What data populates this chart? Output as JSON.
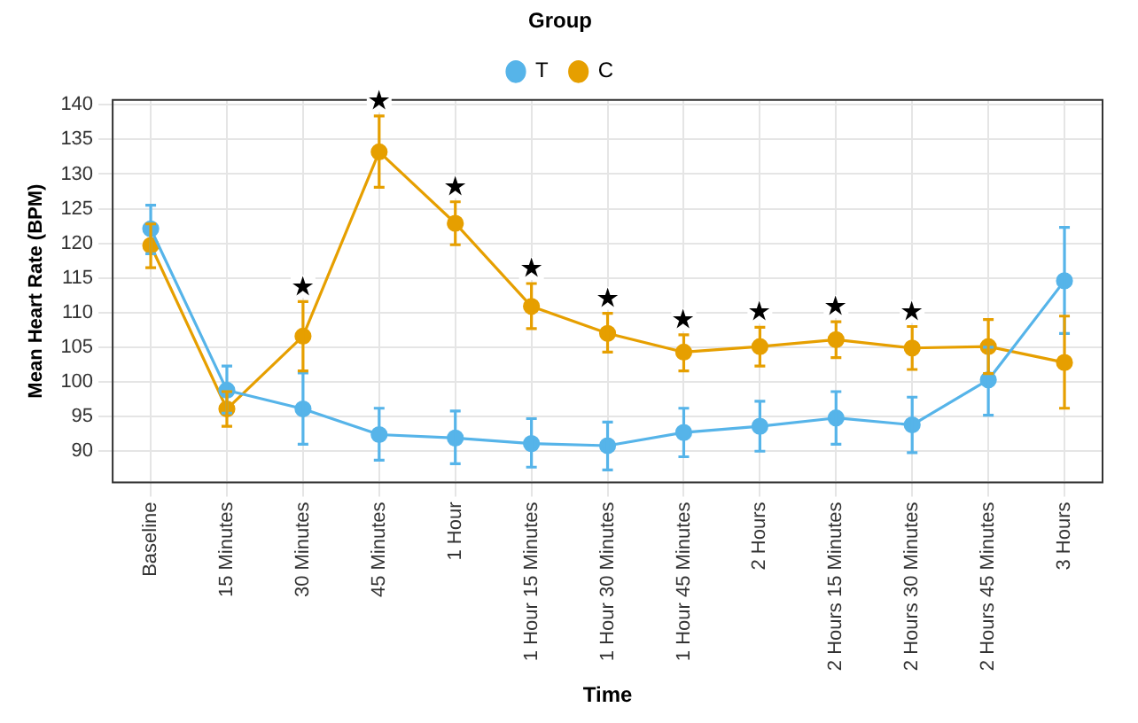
{
  "chart_data": {
    "type": "line",
    "xlabel": "Time",
    "ylabel": "Mean Heart Rate (BPM)",
    "legend_title": "Group",
    "legend": "top",
    "grid": true,
    "marker": "circle",
    "line_style": "solid",
    "categories": [
      "Baseline",
      "15 Minutes",
      "30 Minutes",
      "45 Minutes",
      "1 Hour",
      "1 Hour 15 Minutes",
      "1 Hour 30 Minutes",
      "1 Hour 45 Minutes",
      "2 Hours",
      "2 Hours 15 Minutes",
      "2 Hours 30 Minutes",
      "2 Hours 45 Minutes",
      "3 Hours"
    ],
    "ylim": [
      85.5,
      140.7
    ],
    "yticks": [
      90,
      95,
      100,
      105,
      110,
      115,
      120,
      125,
      130,
      135,
      140
    ],
    "series": [
      {
        "name": "T",
        "color": "#56b4e9",
        "values": [
          122.1,
          98.8,
          96.1,
          92.4,
          91.9,
          91.1,
          90.8,
          92.7,
          93.6,
          94.8,
          93.8,
          100.3,
          114.6
        ],
        "errors": [
          [
            118.5,
            125.5
          ],
          [
            95.5,
            102.3
          ],
          [
            91,
            101.3
          ],
          [
            88.7,
            96.2
          ],
          [
            88.2,
            95.8
          ],
          [
            87.7,
            94.7
          ],
          [
            87.3,
            94.2
          ],
          [
            89.2,
            96.2
          ],
          [
            90,
            97.2
          ],
          [
            91,
            98.6
          ],
          [
            89.8,
            97.8
          ],
          [
            95.2,
            105
          ],
          [
            107,
            122.3
          ]
        ]
      },
      {
        "name": "C",
        "color": "#e69f00",
        "values": [
          119.7,
          96.1,
          106.6,
          133.2,
          122.9,
          110.9,
          107,
          104.3,
          105.1,
          106.1,
          104.9,
          105.1,
          102.8
        ],
        "errors": [
          [
            116.5,
            122.8
          ],
          [
            93.6,
            98.6
          ],
          [
            101.6,
            111.6
          ],
          [
            128.1,
            138.4
          ],
          [
            119.8,
            126
          ],
          [
            107.7,
            114.2
          ],
          [
            104.3,
            109.9
          ],
          [
            101.6,
            106.8
          ],
          [
            102.3,
            107.9
          ],
          [
            103.5,
            108.7
          ],
          [
            101.8,
            108
          ],
          [
            101.2,
            109
          ],
          [
            96.2,
            109.5
          ]
        ]
      }
    ],
    "annotations": [
      {
        "text": "★",
        "x": "30 Minutes",
        "y": 106.6
      },
      {
        "text": "★",
        "x": "45 Minutes",
        "y": 133.2
      },
      {
        "text": "★",
        "x": "1 Hour",
        "y": 122.9
      },
      {
        "text": "★",
        "x": "1 Hour 15 Minutes",
        "y": 110.9
      },
      {
        "text": "★",
        "x": "1 Hour 30 Minutes",
        "y": 107
      },
      {
        "text": "★",
        "x": "1 Hour 45 Minutes",
        "y": 104.3
      },
      {
        "text": "★",
        "x": "2 Hours",
        "y": 105.1
      },
      {
        "text": "★",
        "x": "2 Hours 15 Minutes",
        "y": 106.1
      },
      {
        "text": "★",
        "x": "2 Hours 30 Minutes",
        "y": 104.9
      }
    ]
  }
}
